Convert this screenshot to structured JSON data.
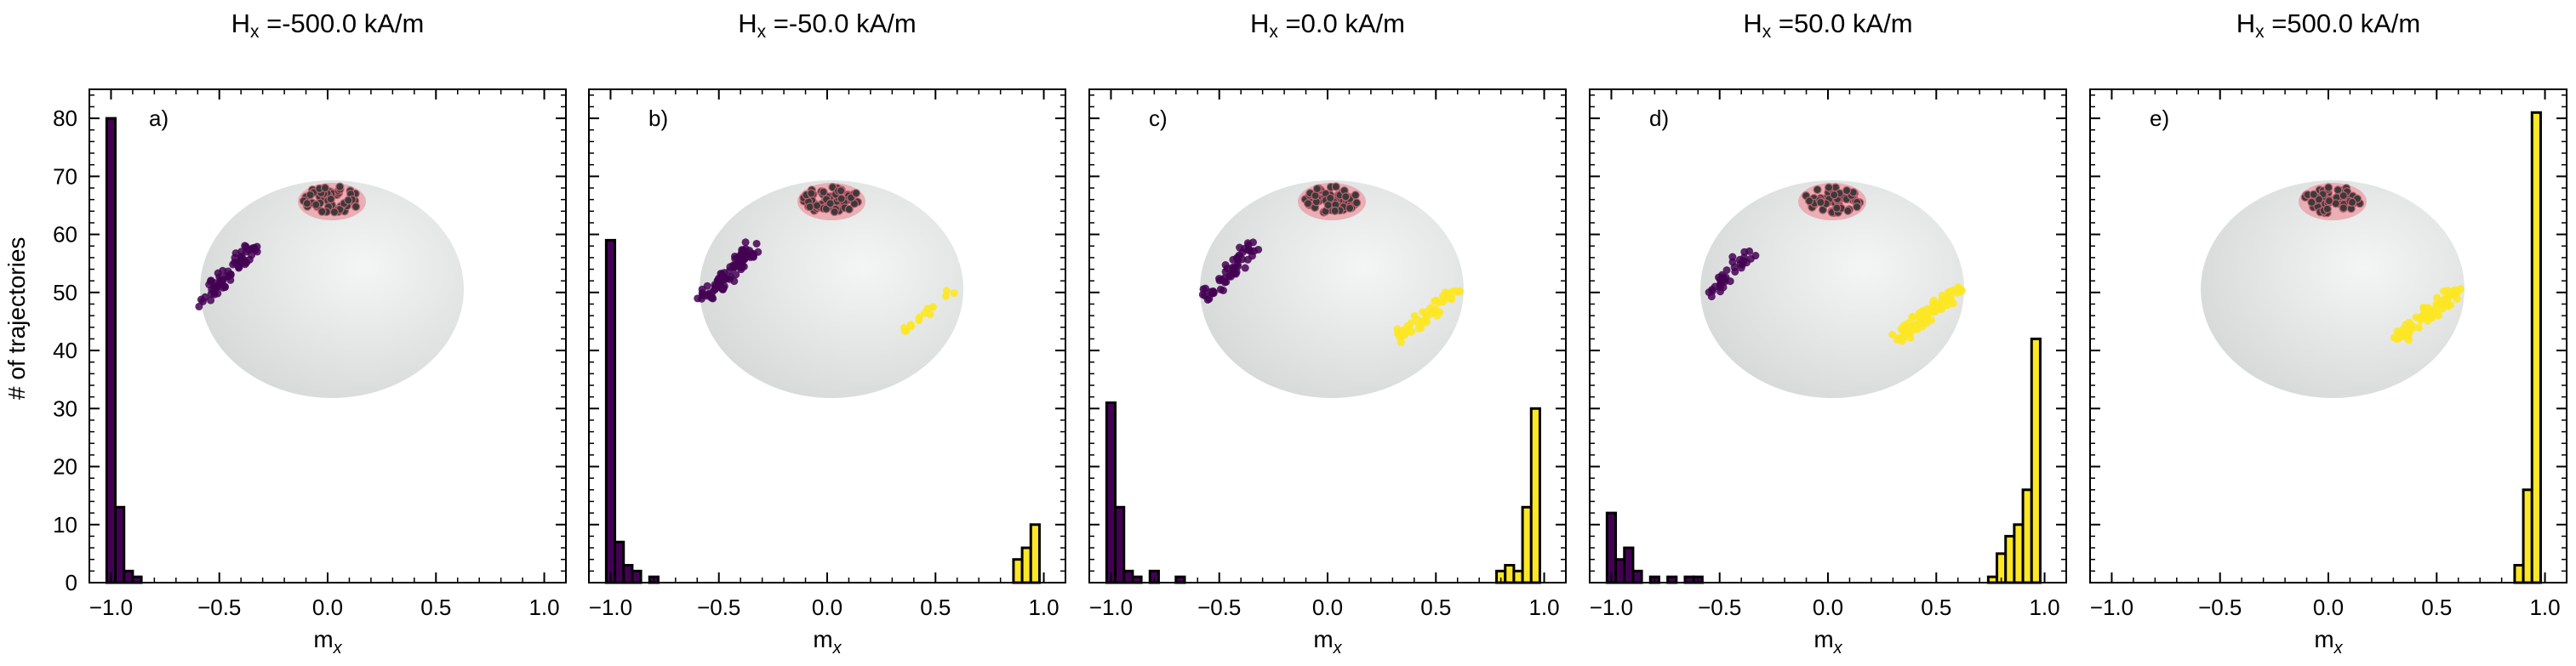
{
  "figure": {
    "ylabel": "# of trajectories",
    "xlabel_base": "m",
    "xlabel_sub": "x"
  },
  "colors": {
    "negative": "#440154",
    "positive": "#fde725",
    "edge": "#000000",
    "sphere": "#e6e7e8",
    "cluster": "#e8a0a8"
  },
  "chart_data": [
    {
      "type": "bar",
      "panel_label": "a)",
      "title_base": "H",
      "title_sub": "x",
      "title_value": " =-500.0 kA/m",
      "xlabel": "m_x",
      "ylabel": "# of trajectories",
      "xlim": [
        -1.1,
        1.1
      ],
      "ylim": [
        0,
        85
      ],
      "xticks": [
        "−1.0",
        "−0.5",
        "0.0",
        "0.5",
        "1.0"
      ],
      "yticks": [
        "0",
        "10",
        "20",
        "30",
        "40",
        "50",
        "60",
        "70",
        "80"
      ],
      "bin_width": 0.04,
      "bars": [
        {
          "x": -1.0,
          "count": 80
        },
        {
          "x": -0.96,
          "count": 13
        },
        {
          "x": -0.92,
          "count": 2
        },
        {
          "x": -0.88,
          "count": 1
        }
      ],
      "inset_points": {
        "negative": 70,
        "positive": 0
      }
    },
    {
      "type": "bar",
      "panel_label": "b)",
      "title_base": "H",
      "title_sub": "x",
      "title_value": " =-50.0 kA/m",
      "xlabel": "m_x",
      "ylabel": "",
      "xlim": [
        -1.1,
        1.1
      ],
      "ylim": [
        0,
        85
      ],
      "xticks": [
        "−1.0",
        "−0.5",
        "0.0",
        "0.5",
        "1.0"
      ],
      "bin_width": 0.04,
      "bars": [
        {
          "x": -1.0,
          "count": 59
        },
        {
          "x": -0.96,
          "count": 7
        },
        {
          "x": -0.92,
          "count": 3
        },
        {
          "x": -0.88,
          "count": 2
        },
        {
          "x": -0.8,
          "count": 1
        },
        {
          "x": 0.88,
          "count": 4
        },
        {
          "x": 0.92,
          "count": 6
        },
        {
          "x": 0.96,
          "count": 10
        }
      ],
      "inset_points": {
        "negative": 85,
        "positive": 15
      }
    },
    {
      "type": "bar",
      "panel_label": "c)",
      "title_base": "H",
      "title_sub": "x",
      "title_value": " =0.0 kA/m",
      "xlabel": "m_x",
      "ylabel": "",
      "xlim": [
        -1.1,
        1.1
      ],
      "ylim": [
        0,
        85
      ],
      "xticks": [
        "−1.0",
        "−0.5",
        "0.0",
        "0.5",
        "1.0"
      ],
      "bin_width": 0.04,
      "bars": [
        {
          "x": -1.0,
          "count": 31
        },
        {
          "x": -0.96,
          "count": 13
        },
        {
          "x": -0.92,
          "count": 2
        },
        {
          "x": -0.88,
          "count": 1
        },
        {
          "x": -0.8,
          "count": 2
        },
        {
          "x": -0.68,
          "count": 1
        },
        {
          "x": 0.8,
          "count": 2
        },
        {
          "x": 0.84,
          "count": 3
        },
        {
          "x": 0.88,
          "count": 2
        },
        {
          "x": 0.92,
          "count": 13
        },
        {
          "x": 0.96,
          "count": 30
        }
      ],
      "inset_points": {
        "negative": 55,
        "positive": 50
      }
    },
    {
      "type": "bar",
      "panel_label": "d)",
      "title_base": "H",
      "title_sub": "x",
      "title_value": " =50.0 kA/m",
      "xlabel": "m_x",
      "ylabel": "",
      "xlim": [
        -1.1,
        1.1
      ],
      "ylim": [
        0,
        85
      ],
      "xticks": [
        "−1.0",
        "−0.5",
        "0.0",
        "0.5",
        "1.0"
      ],
      "bin_width": 0.04,
      "bars": [
        {
          "x": -1.0,
          "count": 12
        },
        {
          "x": -0.96,
          "count": 4
        },
        {
          "x": -0.92,
          "count": 6
        },
        {
          "x": -0.88,
          "count": 2
        },
        {
          "x": -0.8,
          "count": 1
        },
        {
          "x": -0.72,
          "count": 1
        },
        {
          "x": -0.64,
          "count": 1
        },
        {
          "x": -0.6,
          "count": 1
        },
        {
          "x": 0.76,
          "count": 1
        },
        {
          "x": 0.8,
          "count": 5
        },
        {
          "x": 0.84,
          "count": 8
        },
        {
          "x": 0.88,
          "count": 10
        },
        {
          "x": 0.92,
          "count": 16
        },
        {
          "x": 0.96,
          "count": 42
        }
      ],
      "inset_points": {
        "negative": 35,
        "positive": 85
      }
    },
    {
      "type": "bar",
      "panel_label": "e)",
      "title_base": "H",
      "title_sub": "x",
      "title_value": " =500.0 kA/m",
      "xlabel": "m_x",
      "ylabel": "",
      "xlim": [
        -1.1,
        1.1
      ],
      "ylim": [
        0,
        85
      ],
      "xticks": [
        "−1.0",
        "−0.5",
        "0.0",
        "0.5",
        "1.0"
      ],
      "bin_width": 0.04,
      "bars": [
        {
          "x": 0.88,
          "count": 3
        },
        {
          "x": 0.92,
          "count": 16
        },
        {
          "x": 0.96,
          "count": 81
        }
      ],
      "inset_points": {
        "negative": 0,
        "positive": 80
      }
    }
  ]
}
